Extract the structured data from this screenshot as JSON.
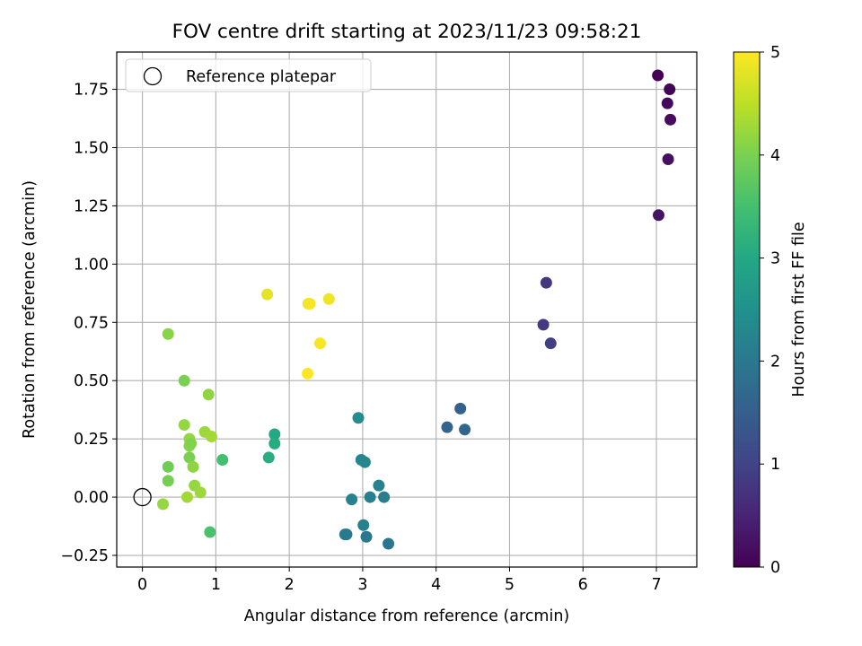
{
  "chart_data": {
    "type": "scatter",
    "title": "FOV centre drift starting at 2023/11/23 09:58:21",
    "xlabel": "Angular distance from reference (arcmin)",
    "ylabel": "Rotation from reference (arcmin)",
    "xlim": [
      -0.35,
      7.55
    ],
    "ylim": [
      -0.3,
      1.91
    ],
    "xticks": [
      0,
      1,
      2,
      3,
      4,
      5,
      6,
      7
    ],
    "xtick_labels": [
      "0",
      "1",
      "2",
      "3",
      "4",
      "5",
      "6",
      "7"
    ],
    "yticks": [
      -0.25,
      0.0,
      0.25,
      0.5,
      0.75,
      1.0,
      1.25,
      1.5,
      1.75
    ],
    "ytick_labels": [
      "−0.25",
      "0.00",
      "0.25",
      "0.50",
      "0.75",
      "1.00",
      "1.25",
      "1.50",
      "1.75"
    ],
    "grid": true,
    "legend": {
      "placement": "top-left",
      "entries": [
        "Reference platepar"
      ]
    },
    "reference_point": {
      "label": "Reference platepar",
      "x": 0.0,
      "y": 0.0,
      "marker": "open-circle",
      "color": "#000000"
    },
    "colorbar": {
      "label": "Hours from first FF file",
      "colormap": "viridis",
      "range": [
        0,
        5
      ],
      "ticks": [
        0,
        1,
        2,
        3,
        4,
        5
      ],
      "tick_labels": [
        "0",
        "1",
        "2",
        "3",
        "4",
        "5"
      ]
    },
    "series": [
      {
        "color_by": "hours",
        "points": [
          {
            "x": 7.02,
            "y": 1.81,
            "c": 0.0
          },
          {
            "x": 7.18,
            "y": 1.75,
            "c": 0.05
          },
          {
            "x": 7.15,
            "y": 1.69,
            "c": 0.1
          },
          {
            "x": 7.19,
            "y": 1.62,
            "c": 0.15
          },
          {
            "x": 7.16,
            "y": 1.45,
            "c": 0.2
          },
          {
            "x": 7.03,
            "y": 1.21,
            "c": 0.25
          },
          {
            "x": 5.5,
            "y": 0.92,
            "c": 0.8
          },
          {
            "x": 5.46,
            "y": 0.74,
            "c": 0.85
          },
          {
            "x": 5.56,
            "y": 0.66,
            "c": 0.9
          },
          {
            "x": 4.33,
            "y": 0.38,
            "c": 1.55
          },
          {
            "x": 4.15,
            "y": 0.3,
            "c": 1.6
          },
          {
            "x": 4.39,
            "y": 0.29,
            "c": 1.65
          },
          {
            "x": 2.94,
            "y": 0.34,
            "c": 2.4
          },
          {
            "x": 2.98,
            "y": 0.16,
            "c": 2.3
          },
          {
            "x": 3.03,
            "y": 0.15,
            "c": 2.25
          },
          {
            "x": 3.22,
            "y": 0.05,
            "c": 2.2
          },
          {
            "x": 3.1,
            "y": 0.0,
            "c": 2.15
          },
          {
            "x": 3.29,
            "y": 0.0,
            "c": 2.1
          },
          {
            "x": 2.85,
            "y": -0.01,
            "c": 2.2
          },
          {
            "x": 3.01,
            "y": -0.12,
            "c": 2.15
          },
          {
            "x": 2.76,
            "y": -0.16,
            "c": 2.1
          },
          {
            "x": 2.78,
            "y": -0.16,
            "c": 2.05
          },
          {
            "x": 3.05,
            "y": -0.17,
            "c": 2.0
          },
          {
            "x": 3.35,
            "y": -0.2,
            "c": 1.95
          },
          {
            "x": 1.8,
            "y": 0.27,
            "c": 3.0
          },
          {
            "x": 1.8,
            "y": 0.23,
            "c": 3.05
          },
          {
            "x": 1.72,
            "y": 0.17,
            "c": 3.1
          },
          {
            "x": 1.09,
            "y": 0.16,
            "c": 3.5
          },
          {
            "x": 0.92,
            "y": -0.15,
            "c": 3.55
          },
          {
            "x": 0.35,
            "y": 0.7,
            "c": 4.1
          },
          {
            "x": 0.57,
            "y": 0.5,
            "c": 4.0
          },
          {
            "x": 0.9,
            "y": 0.44,
            "c": 4.15
          },
          {
            "x": 0.57,
            "y": 0.31,
            "c": 4.2
          },
          {
            "x": 0.85,
            "y": 0.28,
            "c": 4.25
          },
          {
            "x": 0.94,
            "y": 0.26,
            "c": 4.3
          },
          {
            "x": 0.64,
            "y": 0.25,
            "c": 4.2
          },
          {
            "x": 0.64,
            "y": 0.22,
            "c": 4.1
          },
          {
            "x": 0.66,
            "y": 0.23,
            "c": 4.05
          },
          {
            "x": 0.64,
            "y": 0.17,
            "c": 4.0
          },
          {
            "x": 0.35,
            "y": 0.13,
            "c": 3.9
          },
          {
            "x": 0.69,
            "y": 0.13,
            "c": 4.15
          },
          {
            "x": 0.35,
            "y": 0.07,
            "c": 3.95
          },
          {
            "x": 0.71,
            "y": 0.05,
            "c": 4.2
          },
          {
            "x": 0.79,
            "y": 0.02,
            "c": 4.25
          },
          {
            "x": 0.61,
            "y": 0.0,
            "c": 4.3
          },
          {
            "x": 0.28,
            "y": -0.03,
            "c": 4.2
          },
          {
            "x": 1.7,
            "y": 0.87,
            "c": 4.8
          },
          {
            "x": 2.26,
            "y": 0.83,
            "c": 4.9
          },
          {
            "x": 2.28,
            "y": 0.83,
            "c": 4.95
          },
          {
            "x": 2.54,
            "y": 0.85,
            "c": 4.9
          },
          {
            "x": 2.42,
            "y": 0.66,
            "c": 4.95
          },
          {
            "x": 2.25,
            "y": 0.53,
            "c": 5.0
          }
        ]
      }
    ]
  }
}
